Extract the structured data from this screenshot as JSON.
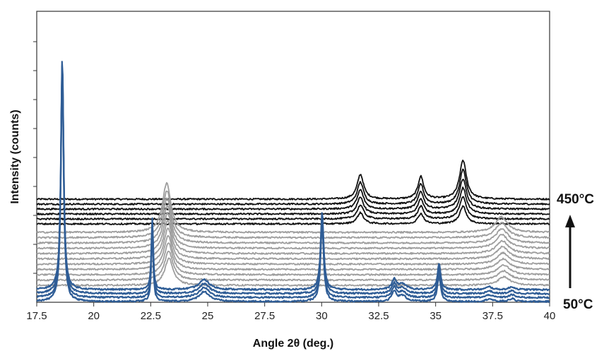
{
  "chart_data": {
    "type": "line",
    "title": "",
    "xlabel": "Angle 2θ (deg.)",
    "ylabel": "Intensity (counts)",
    "xlim": [
      17.5,
      40
    ],
    "xticks": [
      "17.5",
      "20",
      "22.5",
      "25",
      "27.5",
      "30",
      "32.5",
      "35",
      "37.5",
      "40"
    ],
    "y_tick_labels_shown": false,
    "annotations": {
      "top_temperature": "450°C",
      "bottom_temperature": "50°C"
    },
    "series_groups": [
      {
        "group": "low-temperature (blue)",
        "color": "#2f5d96",
        "count": 4,
        "baseline": 1.0,
        "offset_step": 5.6,
        "peaks": [
          {
            "x": 18.62,
            "height": 330,
            "width": 0.07
          },
          {
            "x": 22.57,
            "height": 100,
            "width": 0.05
          },
          {
            "x": 24.85,
            "height": 14,
            "width": 0.28
          },
          {
            "x": 30.02,
            "height": 110,
            "width": 0.08
          },
          {
            "x": 33.18,
            "height": 14,
            "width": 0.12
          },
          {
            "x": 33.55,
            "height": 8,
            "width": 0.2
          },
          {
            "x": 35.15,
            "height": 38,
            "width": 0.08
          },
          {
            "x": 37.35,
            "height": 4,
            "width": 0.15
          },
          {
            "x": 38.35,
            "height": 4,
            "width": 0.15
          }
        ]
      },
      {
        "group": "intermediate-temperature (grey)",
        "color": "#9e9e9e",
        "count": 11,
        "baseline": 24,
        "offset_step": 7.5,
        "peaks": [
          {
            "x": 23.3,
            "height": 70,
            "width": 0.22,
            "shift_per_trace": -0.01
          },
          {
            "x": 38.0,
            "height": 22,
            "width": 0.32,
            "shift_per_trace": -0.012
          }
        ]
      },
      {
        "group": "high-temperature (black)",
        "color": "#111111",
        "count": 6,
        "baseline": 111,
        "offset_step": 7.0,
        "peaks": [
          {
            "x": 31.7,
            "height": 35,
            "width": 0.17
          },
          {
            "x": 34.35,
            "height": 32,
            "width": 0.15
          },
          {
            "x": 36.2,
            "height": 55,
            "width": 0.18
          }
        ]
      }
    ]
  }
}
